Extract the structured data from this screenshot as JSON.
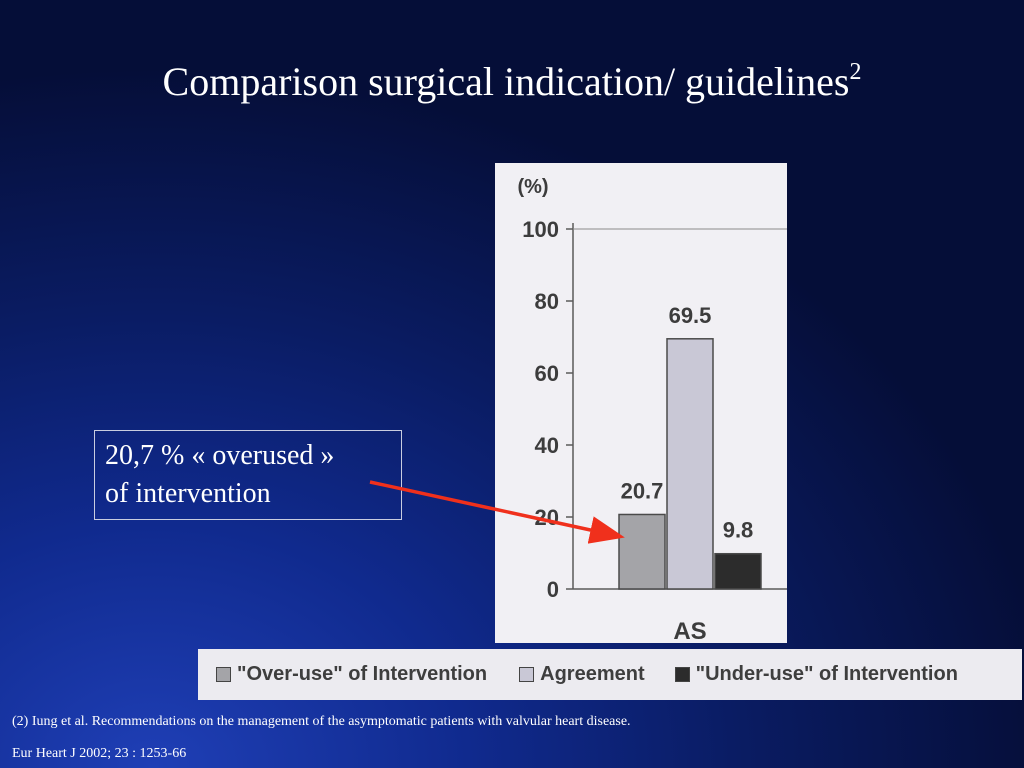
{
  "slide": {
    "title": "Comparison surgical indication/ guidelines",
    "title_superscript": "2"
  },
  "callout": {
    "line1": "20,7 % « overused »",
    "line2": "of intervention"
  },
  "references": {
    "line1": "(2) Iung et al. Recommendations on the management of the asymptomatic patients with valvular heart disease.",
    "line2": "Eur Heart J 2002; 23 : 1253-66"
  },
  "colors": {
    "arrow": "#f0301c",
    "overuse": "#a4a4a8",
    "agreement": "#c9c8d6",
    "underuse": "#2c2c2c"
  },
  "chart_data": {
    "type": "bar",
    "ylabel": "(%)",
    "ylim": [
      0,
      100
    ],
    "yticks": [
      "0",
      "20",
      "40",
      "60",
      "80",
      "100"
    ],
    "categories": [
      "AS"
    ],
    "series": [
      {
        "name": "\"Over-use\" of Intervention",
        "values": [
          20.7
        ],
        "label": "20.7",
        "color": "#a4a4a8"
      },
      {
        "name": "Agreement",
        "values": [
          69.5
        ],
        "label": "69.5",
        "color": "#c9c8d6"
      },
      {
        "name": "\"Under-use\" of Intervention",
        "values": [
          9.8
        ],
        "label": "9.8",
        "color": "#2c2c2c"
      }
    ],
    "legend_position": "bottom"
  }
}
